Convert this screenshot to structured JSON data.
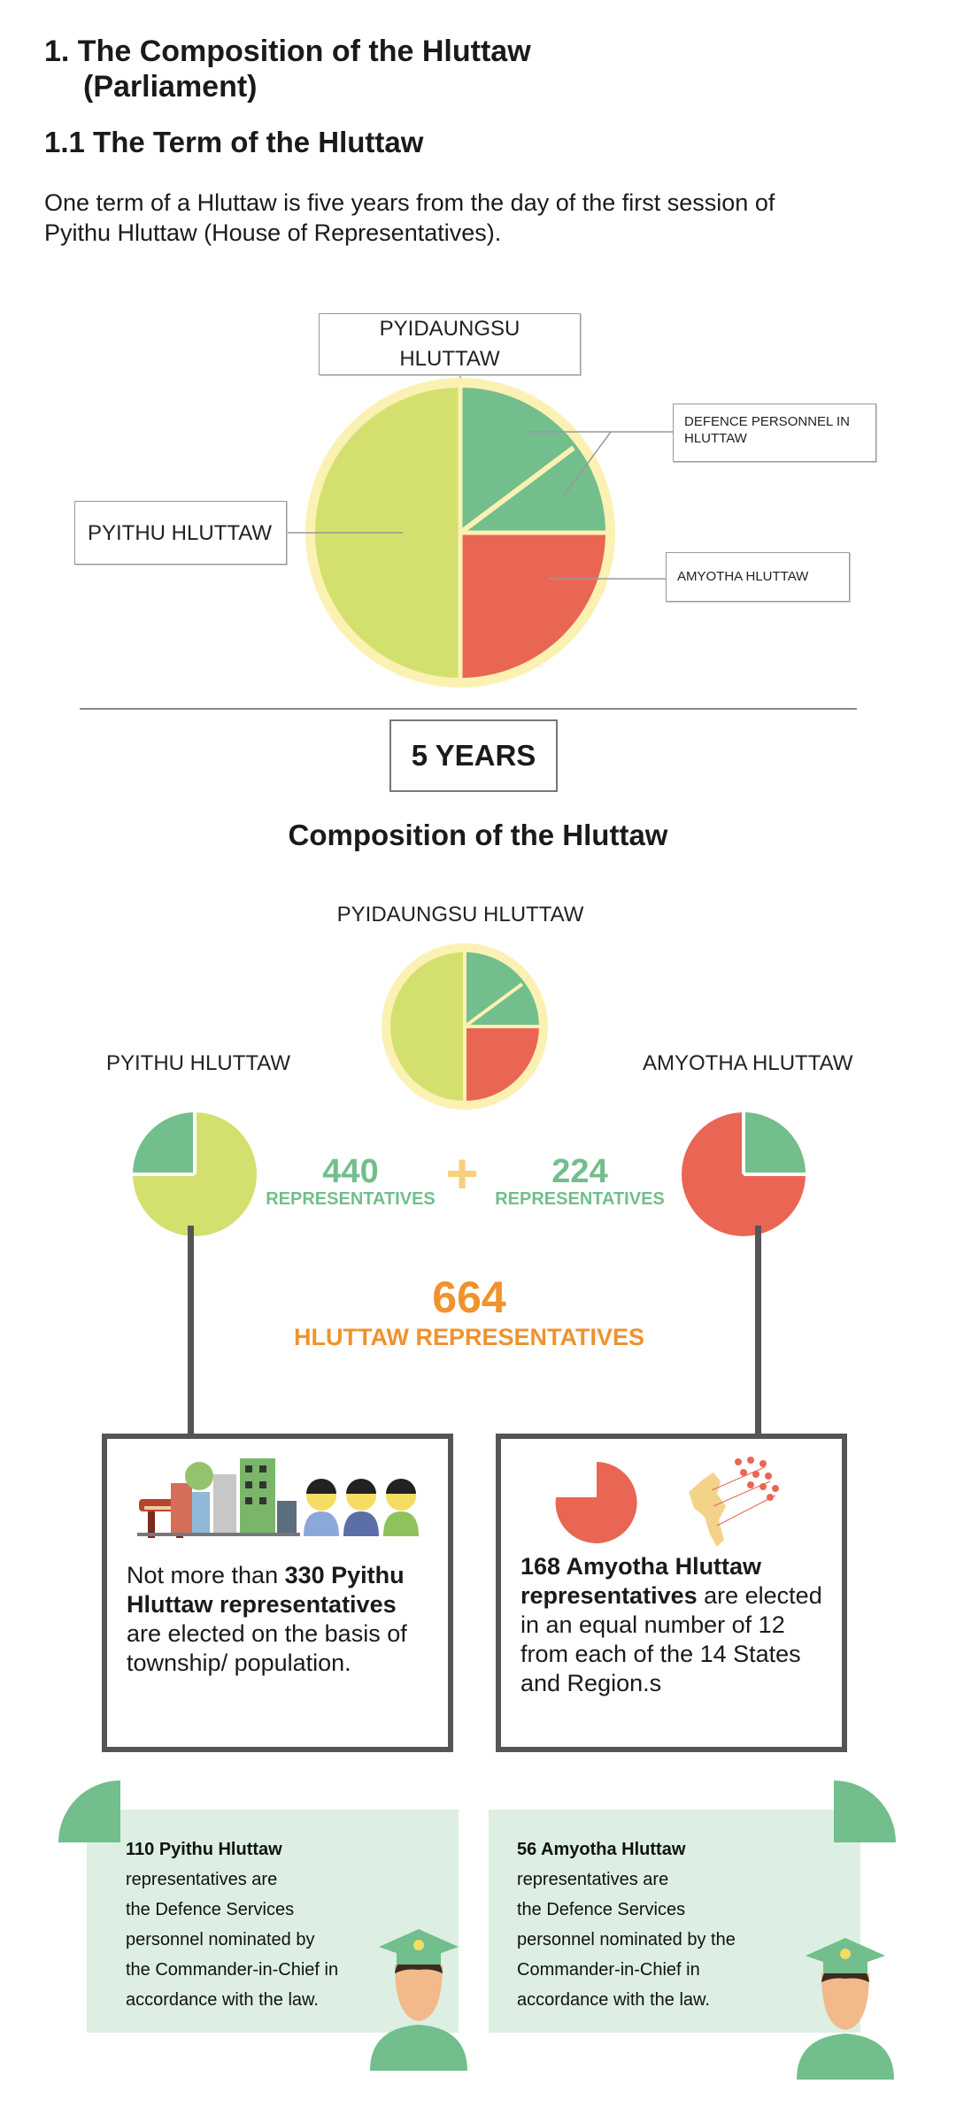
{
  "section": {
    "title_line1": "1. The Composition of the Hluttaw",
    "title_line2": "(Parliament)",
    "subtitle": "1.1 The Term of the Hluttaw",
    "intro": "One term of a Hluttaw is five years from the day of the first session of Pyithu Hluttaw (House of Representatives)."
  },
  "term_chart": {
    "labels": {
      "top": "PYIDAUNGSU HLUTTAW",
      "left": "PYITHU HLUTTAW",
      "defence": "DEFENCE PERSONNEL IN HLUTTAW",
      "amyotha": "AMYOTHA HLUTTAW"
    },
    "duration": "5 YEARS"
  },
  "composition": {
    "title": "Composition of the Hluttaw",
    "pyidaungsu_label": "PYIDAUNGSU HLUTTAW",
    "pyithu_label": "PYITHU HLUTTAW",
    "amyotha_label": "AMYOTHA HLUTTAW",
    "pyithu_count": "440",
    "pyithu_unit": "REPRESENTATIVES",
    "plus": "+",
    "amyotha_count": "224",
    "amyotha_unit": "REPRESENTATIVES",
    "total_count": "664",
    "total_label": "HLUTTAW REPRESENTATIVES"
  },
  "cards": {
    "pyithu_bold": "330 Pyithu Hluttaw representatives",
    "pyithu_prefix": "Not more than ",
    "pyithu_suffix": " are elected on the basis of township/ population.",
    "amyotha_bold": "168 Amyotha Hluttaw representatives",
    "amyotha_suffix": " are elected in an equal number of 12 from each of the 14 States and Region.s"
  },
  "notes": {
    "left_bold": "110 Pyithu Hluttaw",
    "left_lines": [
      "representatives are",
      "the Defence Services",
      "personnel nominated by",
      "the Commander-in-Chief in",
      "accordance with the law."
    ],
    "right_bold": "56 Amyotha Hluttaw",
    "right_lines": [
      "representatives are",
      "the Defence Services",
      "personnel nominated by the",
      "Commander-in-Chief in",
      "accordance with the law."
    ]
  },
  "colors": {
    "yellow_green": "#d4e06e",
    "green": "#72be8c",
    "red": "#e96655",
    "ring": "#fbf1b3",
    "orange": "#f0922d"
  }
}
